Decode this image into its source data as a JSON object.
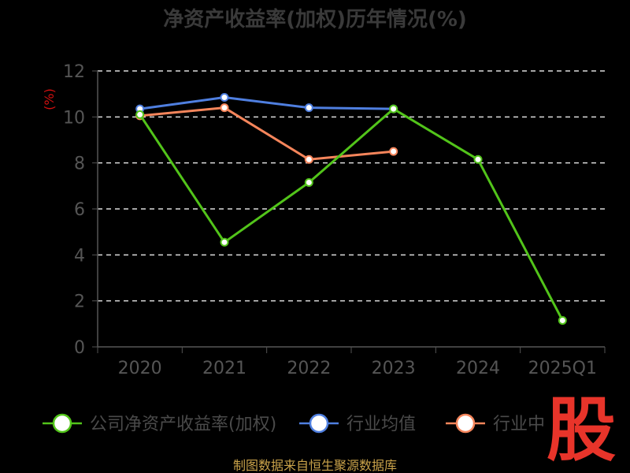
{
  "chart_data": {
    "type": "line",
    "title": "净资产收益率(加权)历年情况(%)",
    "ylabel": "(%)",
    "xlabel": "",
    "categories": [
      "2020",
      "2021",
      "2022",
      "2023",
      "2024",
      "2025Q1"
    ],
    "yticks": [
      "0",
      "2",
      "4",
      "6",
      "8",
      "10",
      "12"
    ],
    "ylim": [
      0,
      12
    ],
    "grid": true,
    "legend_position": "bottom",
    "series": [
      {
        "name": "公司净资产收益率(加权)",
        "color": "#52c41a",
        "values": [
          10.1,
          4.55,
          7.15,
          10.35,
          8.15,
          1.15
        ]
      },
      {
        "name": "行业均值",
        "color": "#4f7fe0",
        "values": [
          10.35,
          10.85,
          10.4,
          10.35,
          null,
          null
        ]
      },
      {
        "name": "行业中",
        "color": "#f5855b",
        "values": [
          10.05,
          10.4,
          8.15,
          8.5,
          null,
          null
        ]
      }
    ]
  },
  "source": "制图数据来自恒生聚源数据库",
  "watermark": "股"
}
